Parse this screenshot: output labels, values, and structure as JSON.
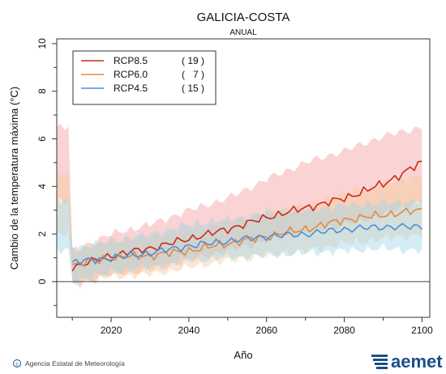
{
  "chart_data": {
    "type": "line",
    "title": "GALICIA-COSTA",
    "subtitle": "ANUAL",
    "xlabel": "Año",
    "ylabel": "Cambio de la temperatura máxima (°C)",
    "xlim": [
      2006,
      2102
    ],
    "ylim": [
      -1.5,
      10.2
    ],
    "x_ticks": [
      2020,
      2040,
      2060,
      2080,
      2100
    ],
    "y_ticks": [
      0,
      2,
      4,
      6,
      8,
      10
    ],
    "legend_position": "top-left",
    "legend": [
      {
        "name": "RCP8.5",
        "count": "( 19 )",
        "color": "#cc2a1e"
      },
      {
        "name": "RCP6.0",
        "count": "(   7 )",
        "color": "#e8893a"
      },
      {
        "name": "RCP4.5",
        "count": "( 15 )",
        "color": "#4a90d9"
      }
    ],
    "series": [
      {
        "name": "RCP8.5",
        "color": "#cc2a1e",
        "band_color": "#f4a0a0",
        "anchors": [
          [
            2010,
            0.6
          ],
          [
            2020,
            1.1
          ],
          [
            2030,
            1.4
          ],
          [
            2040,
            1.8
          ],
          [
            2050,
            2.2
          ],
          [
            2060,
            2.7
          ],
          [
            2070,
            3.1
          ],
          [
            2080,
            3.5
          ],
          [
            2090,
            4.1
          ],
          [
            2100,
            5.0
          ]
        ],
        "band": [
          [
            2010,
            -0.2,
            1.3
          ],
          [
            2020,
            0.3,
            2.0
          ],
          [
            2030,
            0.5,
            2.4
          ],
          [
            2040,
            0.9,
            3.0
          ],
          [
            2050,
            1.3,
            3.5
          ],
          [
            2060,
            1.7,
            4.3
          ],
          [
            2070,
            2.1,
            5.0
          ],
          [
            2080,
            2.4,
            5.5
          ],
          [
            2090,
            2.8,
            6.1
          ],
          [
            2100,
            3.4,
            6.5
          ]
        ]
      },
      {
        "name": "RCP6.0",
        "color": "#e8893a",
        "band_color": "#f7c99a",
        "anchors": [
          [
            2010,
            0.7
          ],
          [
            2020,
            1.0
          ],
          [
            2030,
            1.1
          ],
          [
            2040,
            1.3
          ],
          [
            2050,
            1.6
          ],
          [
            2060,
            1.9
          ],
          [
            2070,
            2.2
          ],
          [
            2080,
            2.6
          ],
          [
            2090,
            2.8
          ],
          [
            2100,
            3.0
          ]
        ],
        "band": [
          [
            2010,
            0.0,
            1.3
          ],
          [
            2020,
            0.2,
            1.7
          ],
          [
            2030,
            0.3,
            1.9
          ],
          [
            2040,
            0.6,
            2.2
          ],
          [
            2050,
            0.9,
            2.5
          ],
          [
            2060,
            1.1,
            2.9
          ],
          [
            2070,
            1.3,
            3.2
          ],
          [
            2080,
            1.6,
            3.7
          ],
          [
            2090,
            1.8,
            4.1
          ],
          [
            2100,
            2.0,
            4.5
          ]
        ]
      },
      {
        "name": "RCP4.5",
        "color": "#4a90d9",
        "band_color": "#9fd4e8",
        "anchors": [
          [
            2010,
            0.8
          ],
          [
            2020,
            1.0
          ],
          [
            2030,
            1.2
          ],
          [
            2040,
            1.5
          ],
          [
            2050,
            1.7
          ],
          [
            2060,
            1.9
          ],
          [
            2070,
            2.0
          ],
          [
            2080,
            2.2
          ],
          [
            2090,
            2.3
          ],
          [
            2100,
            2.3
          ]
        ],
        "band": [
          [
            2010,
            0.0,
            1.4
          ],
          [
            2020,
            0.4,
            1.7
          ],
          [
            2030,
            0.6,
            2.0
          ],
          [
            2040,
            0.9,
            2.4
          ],
          [
            2050,
            1.0,
            2.6
          ],
          [
            2060,
            1.1,
            2.9
          ],
          [
            2070,
            1.2,
            3.0
          ],
          [
            2080,
            1.3,
            3.2
          ],
          [
            2090,
            1.4,
            3.3
          ],
          [
            2100,
            1.3,
            3.4
          ]
        ]
      }
    ]
  },
  "footer": {
    "agency": "Agencia Estatal de Meteorología",
    "logo_text": "aemet"
  }
}
